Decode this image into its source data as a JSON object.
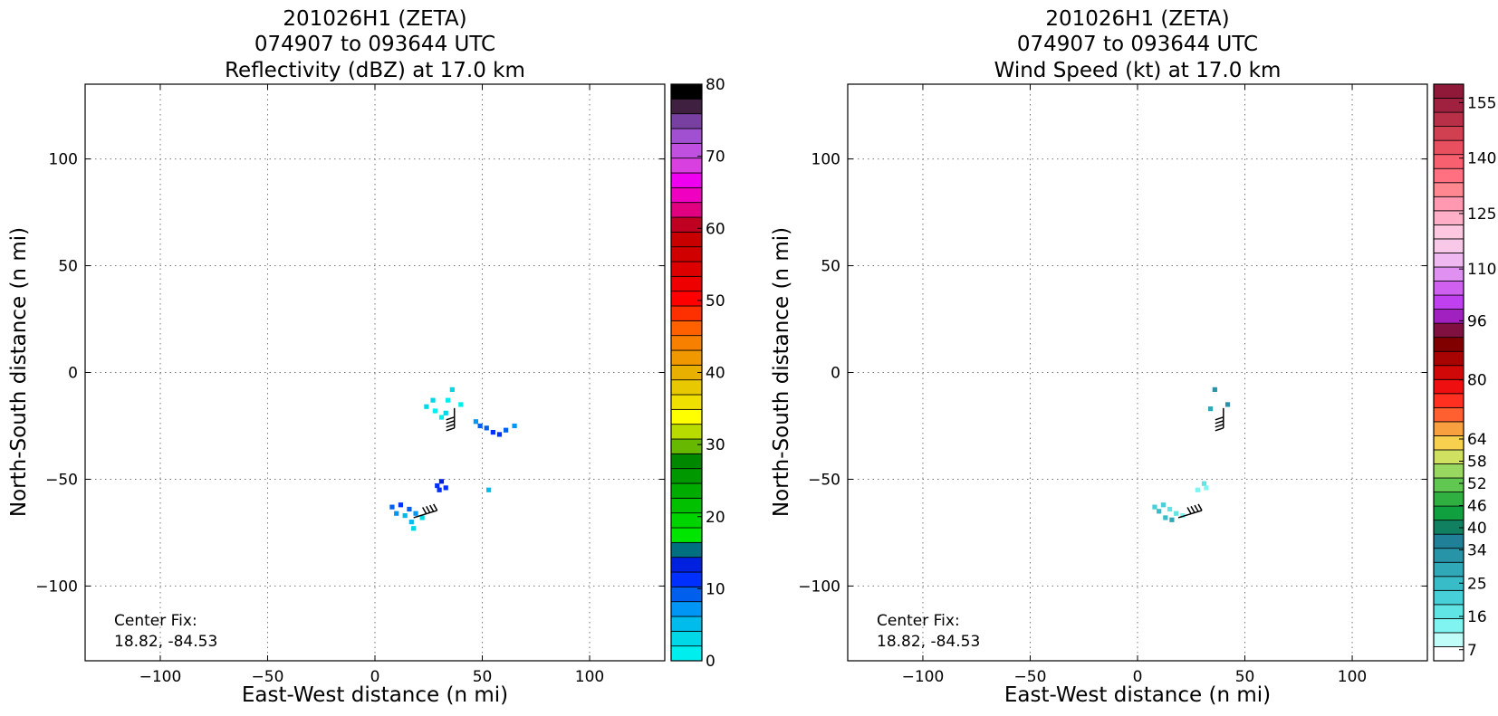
{
  "chart_data": [
    {
      "type": "heatmap",
      "title_lines": [
        "201026H1 (ZETA)",
        "074907 to 093644 UTC",
        "Reflectivity (dBZ) at 17.0 km"
      ],
      "xlabel": "East-West distance (n mi)",
      "ylabel": "North-South distance (n mi)",
      "xlim": [
        -135,
        135
      ],
      "ylim": [
        -135,
        135
      ],
      "xticks": [
        -100,
        -50,
        0,
        50,
        100
      ],
      "xtick_labels": [
        "−100",
        "−50",
        "0",
        "50",
        "100"
      ],
      "yticks": [
        -100,
        -50,
        0,
        50,
        100
      ],
      "ytick_labels": [
        "−100",
        "−50",
        "0",
        "50",
        "100"
      ],
      "grid": true,
      "annotation_lines": [
        "Center Fix:",
        "18.82, -84.53"
      ],
      "colorbar": {
        "min": 0,
        "max": 80,
        "ticks": [
          0,
          10,
          20,
          30,
          40,
          50,
          60,
          70,
          80
        ],
        "tick_labels": [
          "0",
          "10",
          "20",
          "30",
          "40",
          "50",
          "60",
          "70",
          "80"
        ],
        "colors": [
          "#00eeee",
          "#00d8e8",
          "#00bced",
          "#0096f5",
          "#0060ee",
          "#0030ff",
          "#0020e0",
          "#007080",
          "#00e600",
          "#00d400",
          "#00c000",
          "#00ac00",
          "#009800",
          "#008800",
          "#66b800",
          "#b8dc00",
          "#ffff00",
          "#f0e000",
          "#e8c800",
          "#e8b000",
          "#f09800",
          "#f88000",
          "#ff6000",
          "#ff3000",
          "#ff0000",
          "#ee0000",
          "#dd0000",
          "#d00000",
          "#c80000",
          "#c00020",
          "#e00080",
          "#f000c0",
          "#f000f0",
          "#d840e0",
          "#c050e0",
          "#a050d0",
          "#7840a0",
          "#402040",
          "#000000"
        ]
      },
      "echo_cells": [
        {
          "x": 24,
          "y": -16,
          "value": 3
        },
        {
          "x": 28,
          "y": -18,
          "value": 2
        },
        {
          "x": 33,
          "y": -19,
          "value": 3
        },
        {
          "x": 31,
          "y": -21,
          "value": 1
        },
        {
          "x": 34,
          "y": -13,
          "value": 2
        },
        {
          "x": 36,
          "y": -8,
          "value": 3
        },
        {
          "x": 40,
          "y": -15,
          "value": 2
        },
        {
          "x": 27,
          "y": -13,
          "value": 4
        },
        {
          "x": 47,
          "y": -23,
          "value": 8
        },
        {
          "x": 52,
          "y": -26,
          "value": 10
        },
        {
          "x": 55,
          "y": -28,
          "value": 12
        },
        {
          "x": 58,
          "y": -29,
          "value": 11
        },
        {
          "x": 61,
          "y": -27,
          "value": 9
        },
        {
          "x": 65,
          "y": -25,
          "value": 7
        },
        {
          "x": 49,
          "y": -25,
          "value": 9
        },
        {
          "x": 29,
          "y": -53,
          "value": 12
        },
        {
          "x": 31,
          "y": -51,
          "value": 13
        },
        {
          "x": 33,
          "y": -54,
          "value": 12
        },
        {
          "x": 30,
          "y": -55,
          "value": 11
        },
        {
          "x": 53,
          "y": -55,
          "value": 6
        },
        {
          "x": 8,
          "y": -63,
          "value": 9
        },
        {
          "x": 12,
          "y": -62,
          "value": 11
        },
        {
          "x": 16,
          "y": -64,
          "value": 10
        },
        {
          "x": 19,
          "y": -66,
          "value": 8
        },
        {
          "x": 14,
          "y": -67,
          "value": 6
        },
        {
          "x": 17,
          "y": -70,
          "value": 5
        },
        {
          "x": 18,
          "y": -73,
          "value": 3
        },
        {
          "x": 22,
          "y": -68,
          "value": 4
        },
        {
          "x": 10,
          "y": -66,
          "value": 7
        }
      ],
      "wind_barbs": [
        {
          "x": 37,
          "y": -26,
          "direction": "from north"
        },
        {
          "x": 18,
          "y": -68,
          "direction": "from east-northeast"
        }
      ]
    },
    {
      "type": "heatmap",
      "title_lines": [
        "201026H1 (ZETA)",
        "074907 to 093644 UTC",
        "Wind Speed (kt) at 17.0 km"
      ],
      "xlabel": "East-West distance (n mi)",
      "ylabel": "North-South distance (n mi)",
      "xlim": [
        -135,
        135
      ],
      "ylim": [
        -135,
        135
      ],
      "xticks": [
        -100,
        -50,
        0,
        50,
        100
      ],
      "xtick_labels": [
        "−100",
        "−50",
        "0",
        "50",
        "100"
      ],
      "yticks": [
        -100,
        -50,
        0,
        50,
        100
      ],
      "ytick_labels": [
        "−100",
        "−50",
        "0",
        "50",
        "100"
      ],
      "grid": true,
      "annotation_lines": [
        "Center Fix:",
        "18.82, -84.53"
      ],
      "colorbar": {
        "min": 4,
        "max": 160,
        "ticks": [
          7,
          16,
          25,
          34,
          40,
          46,
          52,
          58,
          64,
          80,
          96,
          110,
          125,
          140,
          155
        ],
        "tick_labels": [
          "7",
          "16",
          "25",
          "34",
          "40",
          "46",
          "52",
          "58",
          "64",
          "80",
          "96",
          "110",
          "125",
          "140",
          "155"
        ],
        "colors": [
          "#ffffff",
          "#c0fcf8",
          "#80f4f0",
          "#60e4e4",
          "#48d0d8",
          "#38bcc8",
          "#30a8b8",
          "#2894a8",
          "#208098",
          "#108060",
          "#10a040",
          "#30b040",
          "#60c850",
          "#98d860",
          "#d0e060",
          "#f8d050",
          "#f8a040",
          "#ff6030",
          "#ff3020",
          "#ee1010",
          "#d00808",
          "#a80404",
          "#800000",
          "#801040",
          "#a020c0",
          "#c040f0",
          "#d060f0",
          "#e090f0",
          "#f0b8f0",
          "#f8c8e8",
          "#ffc8e0",
          "#ffb0c8",
          "#ff98b0",
          "#ff8890",
          "#ff7080",
          "#f86070",
          "#e85060",
          "#d04050",
          "#b83048",
          "#a02040",
          "#901838"
        ]
      },
      "echo_cells": [
        {
          "x": 36,
          "y": -8,
          "value": 34
        },
        {
          "x": 42,
          "y": -15,
          "value": 34
        },
        {
          "x": 34,
          "y": -17,
          "value": 30
        },
        {
          "x": 31,
          "y": -52,
          "value": 16
        },
        {
          "x": 28,
          "y": -55,
          "value": 14
        },
        {
          "x": 32,
          "y": -54,
          "value": 12
        },
        {
          "x": 8,
          "y": -63,
          "value": 20
        },
        {
          "x": 12,
          "y": -62,
          "value": 22
        },
        {
          "x": 15,
          "y": -64,
          "value": 18
        },
        {
          "x": 18,
          "y": -66,
          "value": 16
        },
        {
          "x": 13,
          "y": -68,
          "value": 24
        },
        {
          "x": 16,
          "y": -69,
          "value": 28
        },
        {
          "x": 21,
          "y": -67,
          "value": 14
        },
        {
          "x": 10,
          "y": -65,
          "value": 25
        }
      ],
      "wind_barbs": [
        {
          "x": 40,
          "y": -26,
          "direction": "from north"
        },
        {
          "x": 19,
          "y": -68,
          "direction": "from east-northeast"
        }
      ]
    }
  ]
}
